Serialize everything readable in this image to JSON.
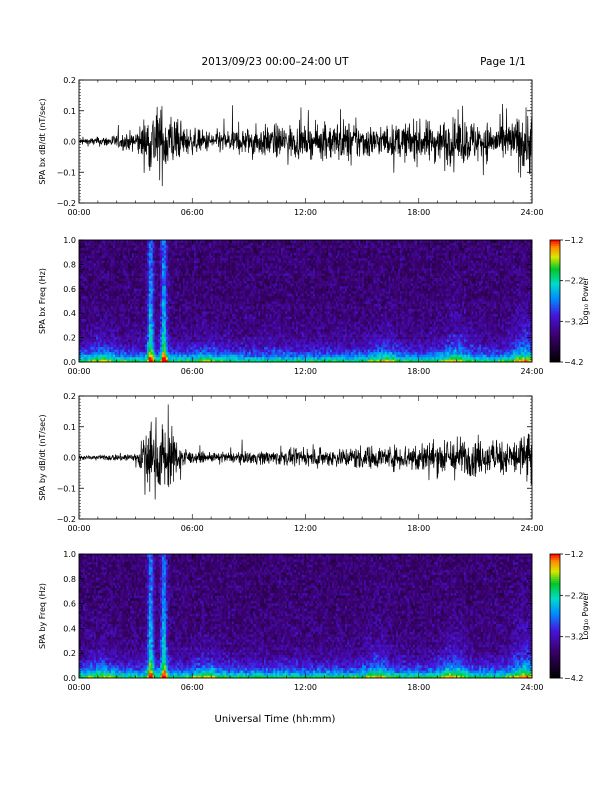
{
  "header": {
    "title": "2013/09/23  00:00–24:00 UT",
    "page": "Page 1/1"
  },
  "footer": {
    "xlabel": "Universal Time (hh:mm)"
  },
  "chart_data": [
    {
      "type": "line",
      "ylabel": "SPA bx dB/dt (nT/sec)",
      "ylim": [
        -0.2,
        0.2
      ],
      "yticks": [
        "0.2",
        "0.1",
        "0.0",
        "−0.1",
        "−0.2"
      ],
      "xticks": [
        "00:00",
        "06:00",
        "12:00",
        "18:00",
        "24:00"
      ],
      "xlim_hours": [
        0,
        24
      ],
      "series": [
        {
          "envelope": [
            [
              0,
              0.02
            ],
            [
              1,
              0.025
            ],
            [
              2,
              0.04
            ],
            [
              3,
              0.06
            ],
            [
              3.6,
              0.15
            ],
            [
              4.0,
              0.2
            ],
            [
              4.7,
              0.2
            ],
            [
              5.3,
              0.1
            ],
            [
              6,
              0.07
            ],
            [
              7,
              0.06
            ],
            [
              8,
              0.07
            ],
            [
              9,
              0.08
            ],
            [
              10,
              0.09
            ],
            [
              11,
              0.1
            ],
            [
              12,
              0.08
            ],
            [
              13,
              0.1
            ],
            [
              14,
              0.12
            ],
            [
              15,
              0.1
            ],
            [
              16,
              0.08
            ],
            [
              17,
              0.1
            ],
            [
              18,
              0.11
            ],
            [
              19,
              0.12
            ],
            [
              20,
              0.13
            ],
            [
              21,
              0.12
            ],
            [
              22,
              0.1
            ],
            [
              23,
              0.12
            ],
            [
              23.5,
              0.18
            ],
            [
              24,
              0.2
            ]
          ]
        }
      ]
    },
    {
      "type": "heatmap",
      "ylabel": "SPA bx Freq (Hz)",
      "ylim": [
        0.0,
        1.0
      ],
      "yticks": [
        "1.0",
        "0.8",
        "0.6",
        "0.4",
        "0.2",
        "0.0"
      ],
      "xticks": [
        "00:00",
        "06:00",
        "12:00",
        "18:00",
        "24:00"
      ],
      "xlim_hours": [
        0,
        24
      ],
      "colorbar": {
        "label": "Log₁₀ Power",
        "ticks": [
          "−1.2",
          "−2.2",
          "−3.2",
          "−4.2"
        ],
        "range": [
          -4.2,
          -1.2
        ]
      },
      "features": [
        {
          "hour": 3.8,
          "strength": 1.0,
          "height": 1.0
        },
        {
          "hour": 4.5,
          "strength": 1.0,
          "height": 1.0
        },
        {
          "hour": 1.2,
          "strength": 0.45,
          "height": 0.3
        },
        {
          "hour": 6.8,
          "strength": 0.35,
          "height": 0.25
        },
        {
          "hour": 16.2,
          "strength": 0.4,
          "height": 0.35
        },
        {
          "hour": 20.0,
          "strength": 0.55,
          "height": 0.45
        },
        {
          "hour": 23.6,
          "strength": 0.6,
          "height": 0.6
        }
      ]
    },
    {
      "type": "line",
      "ylabel": "SPA by dB/dt (nT/sec)",
      "ylim": [
        -0.2,
        0.2
      ],
      "yticks": [
        "0.2",
        "0.1",
        "0.0",
        "−0.1",
        "−0.2"
      ],
      "xticks": [
        "00:00",
        "06:00",
        "12:00",
        "18:00",
        "24:00"
      ],
      "xlim_hours": [
        0,
        24
      ],
      "series": [
        {
          "envelope": [
            [
              0,
              0.01
            ],
            [
              1,
              0.012
            ],
            [
              2,
              0.02
            ],
            [
              3,
              0.03
            ],
            [
              3.6,
              0.15
            ],
            [
              4.0,
              0.2
            ],
            [
              4.7,
              0.2
            ],
            [
              5.3,
              0.08
            ],
            [
              6,
              0.03
            ],
            [
              7,
              0.025
            ],
            [
              8,
              0.03
            ],
            [
              9,
              0.035
            ],
            [
              10,
              0.04
            ],
            [
              11,
              0.045
            ],
            [
              12,
              0.04
            ],
            [
              13,
              0.05
            ],
            [
              14,
              0.055
            ],
            [
              15,
              0.07
            ],
            [
              16,
              0.06
            ],
            [
              17,
              0.07
            ],
            [
              18,
              0.09
            ],
            [
              19,
              0.1
            ],
            [
              20,
              0.12
            ],
            [
              21,
              0.1
            ],
            [
              22,
              0.09
            ],
            [
              23,
              0.1
            ],
            [
              23.5,
              0.15
            ],
            [
              24,
              0.18
            ]
          ]
        }
      ]
    },
    {
      "type": "heatmap",
      "ylabel": "SPA by Freq (Hz)",
      "ylim": [
        0.0,
        1.0
      ],
      "yticks": [
        "1.0",
        "0.8",
        "0.6",
        "0.4",
        "0.2",
        "0.0"
      ],
      "xticks": [
        "00:00",
        "06:00",
        "12:00",
        "18:00",
        "24:00"
      ],
      "xlim_hours": [
        0,
        24
      ],
      "colorbar": {
        "label": "Log₁₀ Power",
        "ticks": [
          "−1.2",
          "−2.2",
          "−3.2",
          "−4.2"
        ],
        "range": [
          -4.2,
          -1.2
        ]
      },
      "features": [
        {
          "hour": 3.8,
          "strength": 1.0,
          "height": 1.0
        },
        {
          "hour": 4.5,
          "strength": 1.0,
          "height": 1.0
        },
        {
          "hour": 1.2,
          "strength": 0.45,
          "height": 0.3
        },
        {
          "hour": 6.8,
          "strength": 0.4,
          "height": 0.3
        },
        {
          "hour": 15.8,
          "strength": 0.5,
          "height": 0.4
        },
        {
          "hour": 19.8,
          "strength": 0.55,
          "height": 0.45
        },
        {
          "hour": 23.6,
          "strength": 0.65,
          "height": 0.6
        }
      ]
    }
  ]
}
